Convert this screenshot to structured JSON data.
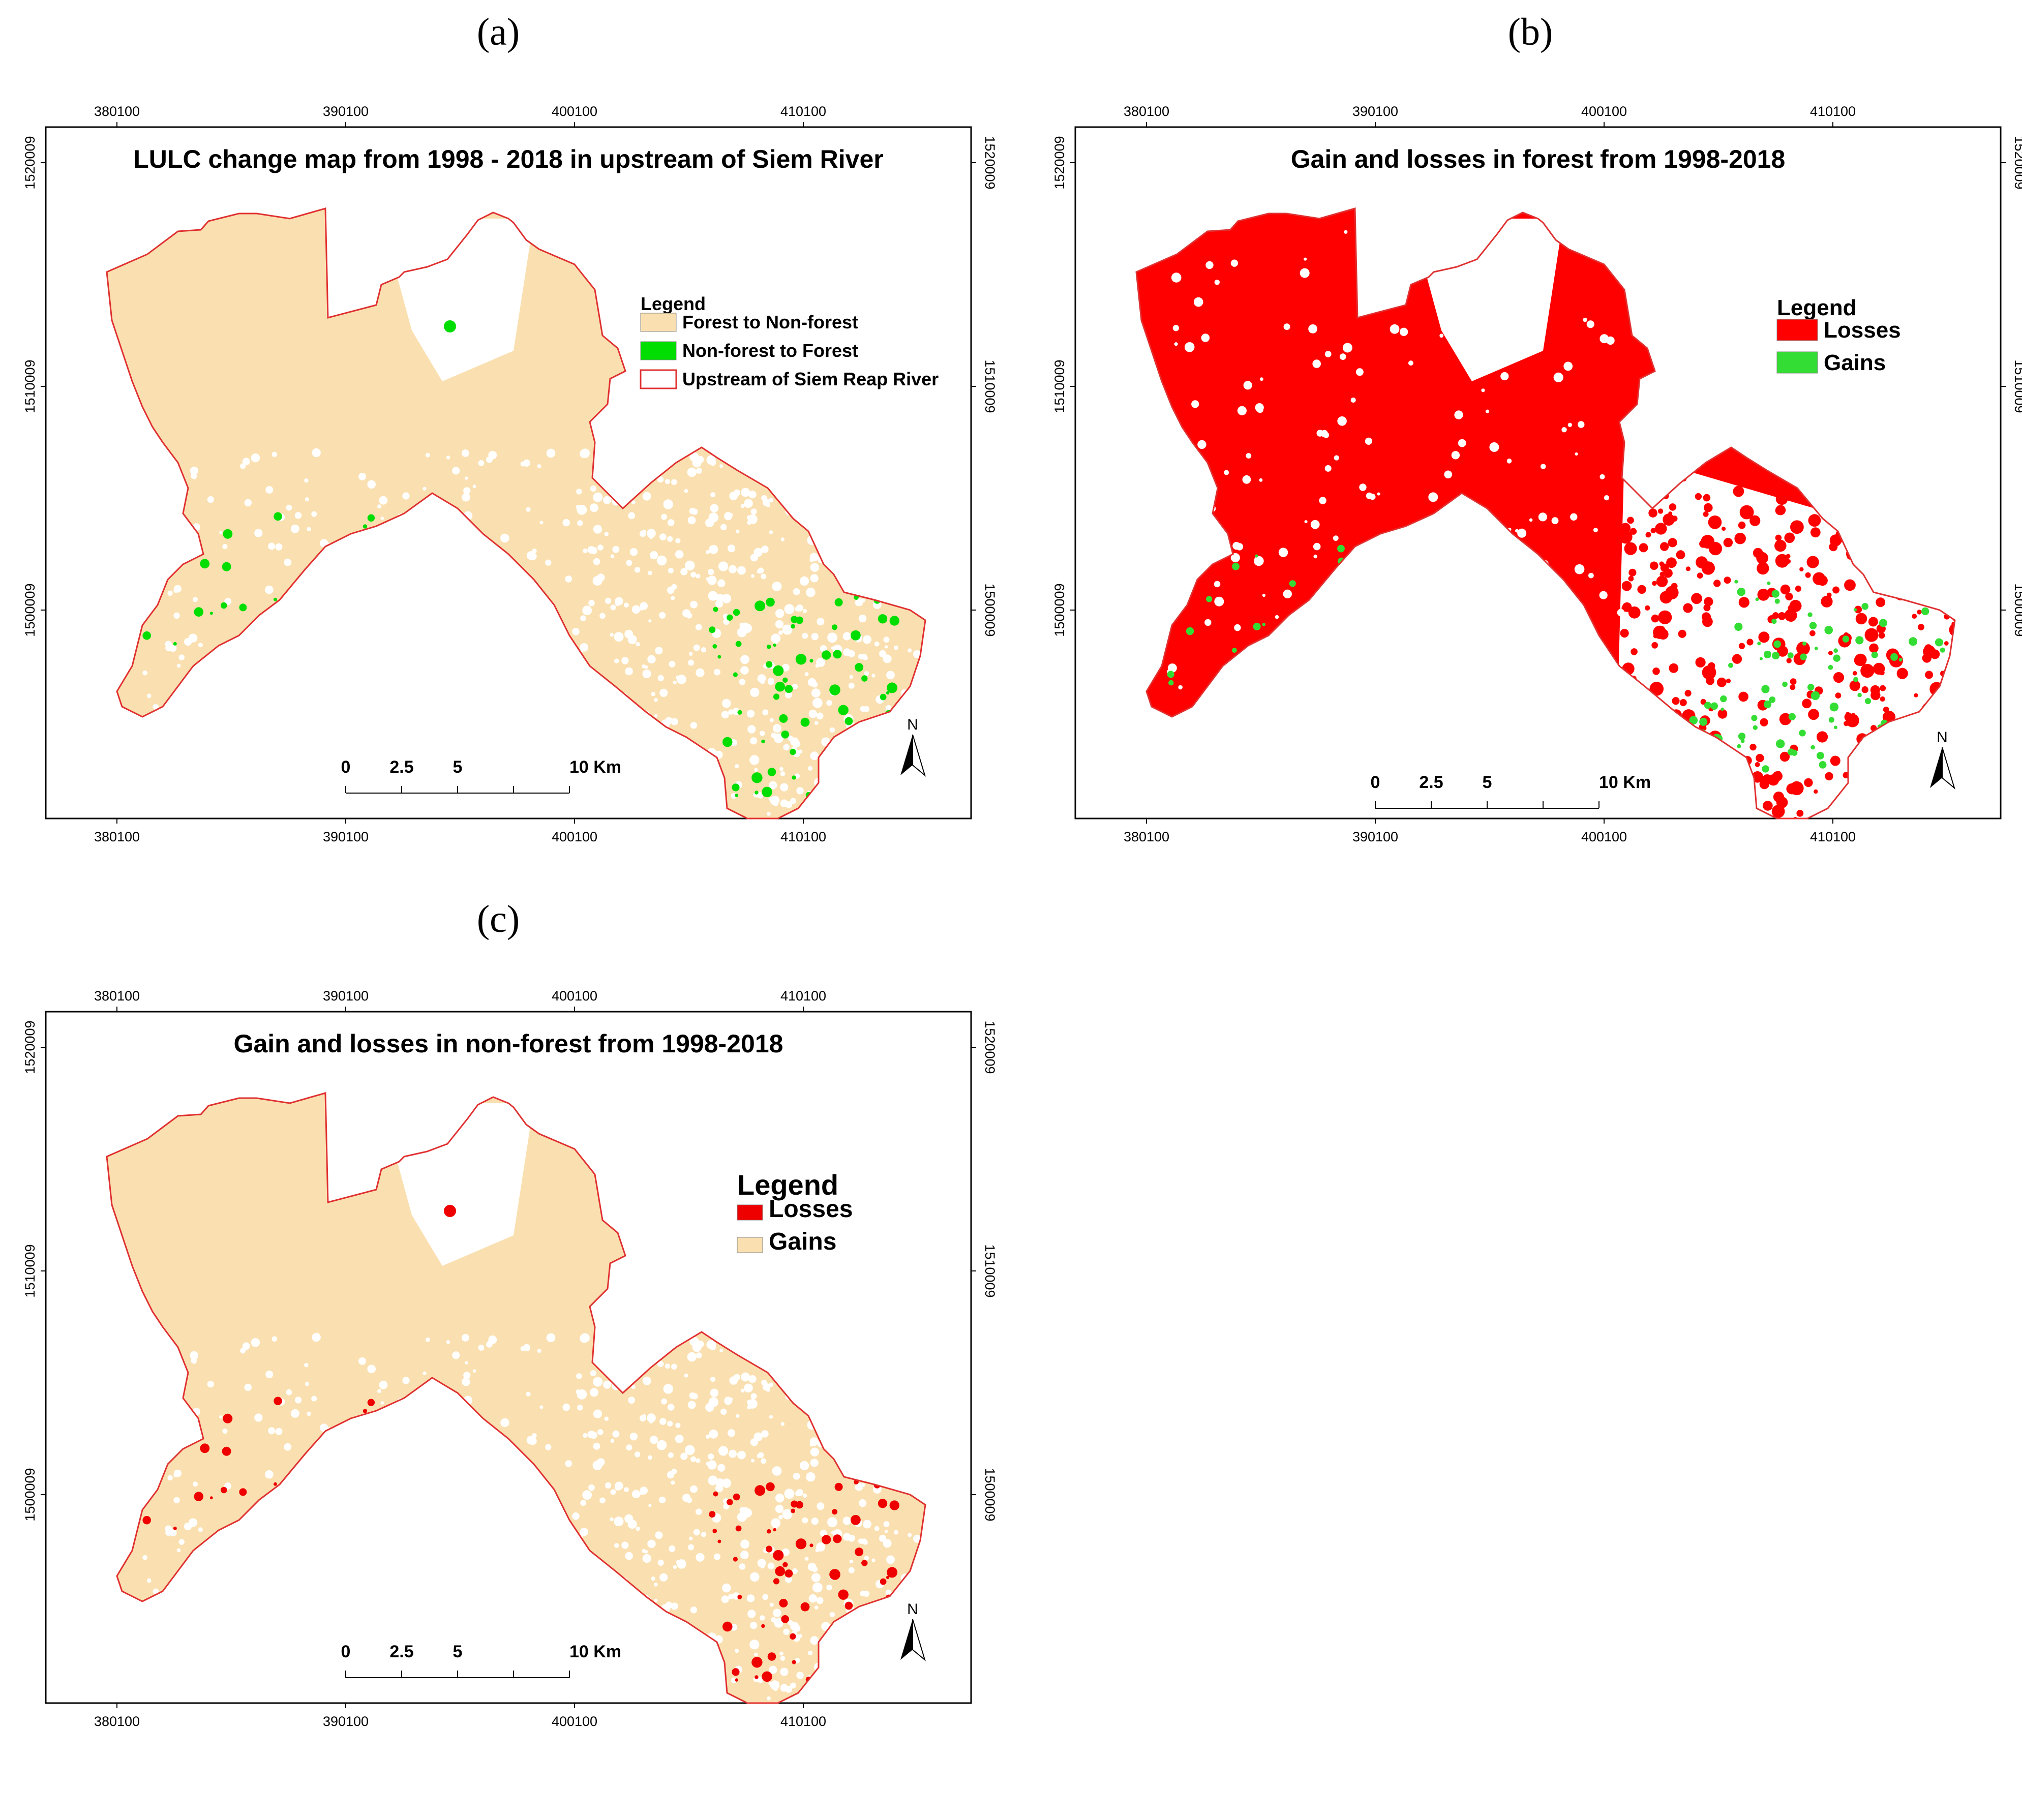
{
  "panels": [
    {
      "label": "(a)",
      "title": "LULC change map from 1998 - 2018 in upstream of Siem River",
      "fill_color": "#fae0b0",
      "spot_color": "#00dd00",
      "legend": {
        "title": "Legend",
        "items": [
          {
            "label": "Forest to Non-forest",
            "color": "#fae0b0"
          },
          {
            "label": "Non-forest to Forest",
            "color": "#00dd00"
          },
          {
            "label": "Upstream of Siem Reap River",
            "color": "#ffffff"
          }
        ]
      }
    },
    {
      "label": "(b)",
      "title": "Gain and losses in forest from 1998-2018",
      "fill_color": "#ff0000",
      "spot_color": "#33dd33",
      "legend": {
        "title": "Legend",
        "items": [
          {
            "label": "Losses",
            "color": "#ff0000"
          },
          {
            "label": "Gains",
            "color": "#33dd33"
          }
        ]
      }
    },
    {
      "label": "(c)",
      "title": "Gain and losses in non-forest from 1998-2018",
      "fill_color": "#fae0b0",
      "spot_color": "#ee0000",
      "legend": {
        "title": "Legend",
        "items": [
          {
            "label": "Losses",
            "color": "#ee0000"
          },
          {
            "label": "Gains",
            "color": "#fae0b0"
          }
        ]
      }
    }
  ],
  "x_ticks": [
    "380100",
    "390100",
    "400100",
    "410100"
  ],
  "y_ticks": [
    "1520009",
    "1510009",
    "1500009"
  ],
  "scale_bar": {
    "labels": [
      "0",
      "2.5",
      "5",
      "10 Km"
    ]
  },
  "north_label": "N",
  "boundary_color": "#e03030"
}
